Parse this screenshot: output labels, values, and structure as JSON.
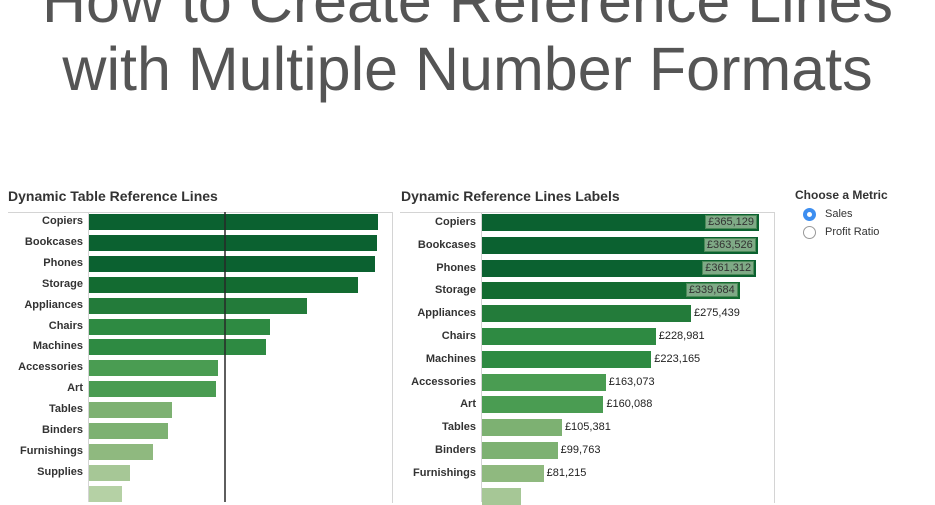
{
  "page_title": {
    "line1": "How to Create Reference Lines",
    "line2": "with Multiple Number Formats"
  },
  "chart_data": [
    {
      "type": "bar",
      "orientation": "horizontal",
      "title": "Dynamic Table Reference Lines",
      "categories": [
        "Copiers",
        "Bookcases",
        "Phones",
        "Storage",
        "Appliances",
        "Chairs",
        "Machines",
        "Accessories",
        "Art",
        "Tables",
        "Binders",
        "Furnishings",
        "Supplies",
        ""
      ],
      "values": [
        365129,
        363526,
        361312,
        339684,
        275439,
        228981,
        223165,
        163073,
        160088,
        105381,
        99763,
        81215,
        52000,
        42000
      ],
      "reference_line": 172000,
      "xlim": [
        0,
        365129
      ],
      "grid": false
    },
    {
      "type": "bar",
      "orientation": "horizontal",
      "title": "Dynamic Reference Lines Labels",
      "categories": [
        "Copiers",
        "Bookcases",
        "Phones",
        "Storage",
        "Appliances",
        "Chairs",
        "Machines",
        "Accessories",
        "Art",
        "Tables",
        "Binders",
        "Furnishings",
        ""
      ],
      "values": [
        365129,
        363526,
        361312,
        339684,
        275439,
        228981,
        223165,
        163073,
        160088,
        105381,
        99763,
        81215,
        52000
      ],
      "labels": [
        "£365,129",
        "£363,526",
        "£361,312",
        "£339,684",
        "£275,439",
        "£228,981",
        "£223,165",
        "£163,073",
        "£160,088",
        "£105,381",
        "£99,763",
        "£81,215",
        ""
      ],
      "highlighted_labels": 4,
      "xlim": [
        0,
        365129
      ],
      "grid": false
    }
  ],
  "colors": [
    "#0b6130",
    "#0b6130",
    "#0b6130",
    "#136b31",
    "#237b3a",
    "#2e8a42",
    "#2e8a42",
    "#4a9c52",
    "#4a9c52",
    "#7db172",
    "#7db172",
    "#8fb97f",
    "#a6c796",
    "#b5d1a5"
  ],
  "metric": {
    "title": "Choose a Metric",
    "options": [
      {
        "label": "Sales",
        "selected": true
      },
      {
        "label": "Profit Ratio",
        "selected": false
      }
    ]
  }
}
